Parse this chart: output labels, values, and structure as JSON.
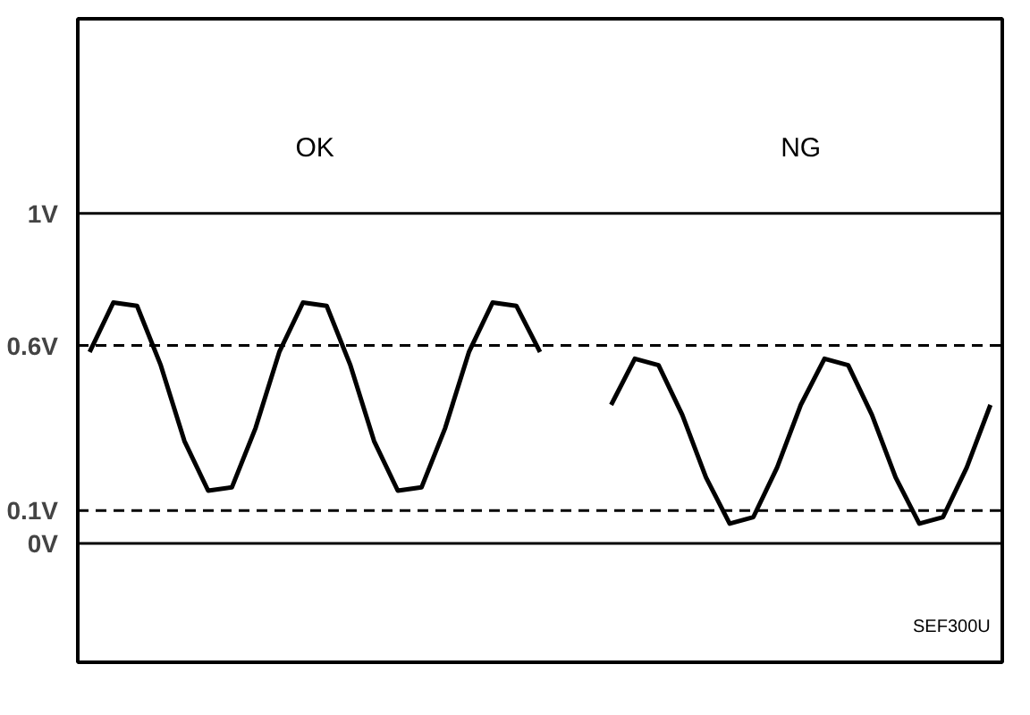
{
  "chart_data": {
    "type": "line",
    "categories": [
      null,
      null,
      null,
      null,
      null,
      null,
      null,
      null,
      null,
      null,
      null,
      null,
      null,
      null,
      null,
      null,
      null,
      null,
      null,
      null,
      null,
      null,
      null,
      null,
      null,
      null,
      null,
      null,
      null,
      null,
      null,
      null,
      null,
      null,
      null,
      null,
      null,
      null,
      null
    ],
    "series": [
      {
        "color": "#000000",
        "values": [
          0.58,
          0.73,
          0.72,
          0.54,
          0.31,
          0.16,
          0.17,
          0.35,
          0.58,
          0.73,
          0.72,
          0.54,
          0.31,
          0.16,
          0.17,
          0.35,
          0.58,
          0.73,
          0.72,
          0.58,
          null,
          null,
          null,
          null,
          null,
          null,
          null,
          null,
          null,
          null,
          null,
          null,
          null,
          null,
          null,
          null,
          null,
          null,
          null
        ]
      },
      {
        "color": "#000000",
        "values": [
          null,
          null,
          null,
          null,
          null,
          null,
          null,
          null,
          null,
          null,
          null,
          null,
          null,
          null,
          null,
          null,
          null,
          null,
          null,
          null,
          null,
          null,
          0.42,
          0.56,
          0.54,
          0.39,
          0.2,
          0.06,
          0.08,
          0.23,
          0.42,
          0.56,
          0.54,
          0.39,
          0.2,
          0.06,
          0.08,
          0.23,
          0.42
        ]
      }
    ],
    "ylim": [
      -0.36,
      1.59
    ],
    "yticks": [
      {
        "value": 0,
        "label": "0V"
      },
      {
        "value": 0.1,
        "label": "0.1V"
      },
      {
        "value": 0.6,
        "label": "0.6V"
      },
      {
        "value": 1,
        "label": "1V"
      }
    ],
    "ref_lines": [
      {
        "axis": "y",
        "value": 1,
        "color": "#000000",
        "line_style": "solid"
      },
      {
        "axis": "y",
        "value": 0.6,
        "color": "#000000",
        "line_style": "dashed"
      },
      {
        "axis": "y",
        "value": 0.1,
        "color": "#000000",
        "line_style": "dashed"
      },
      {
        "axis": "y",
        "value": 0,
        "color": "#000000",
        "line_style": "solid"
      }
    ],
    "tick_labels": "y",
    "line_style": "solid",
    "annotations": [
      "OK",
      "NG",
      "SEF300U"
    ]
  }
}
